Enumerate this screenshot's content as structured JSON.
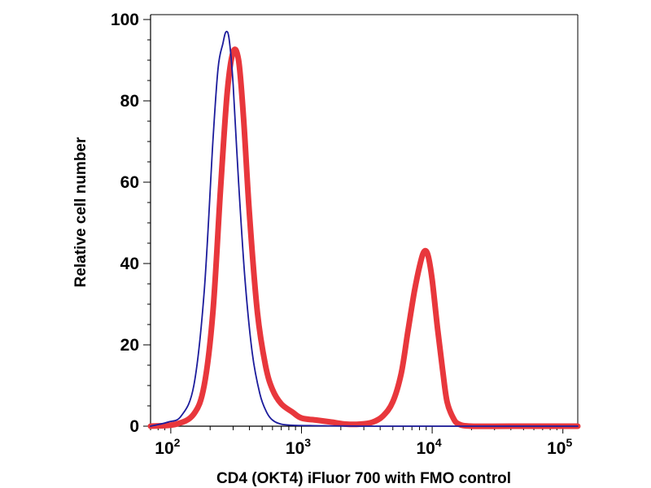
{
  "chart_data": {
    "type": "line",
    "title": "",
    "xlabel": "CD4 (OKT4) iFluor 700 with FMO control",
    "ylabel": "Relative cell number",
    "xscale": "log",
    "xlim": [
      70,
      130000
    ],
    "ylim": [
      0,
      100
    ],
    "x_ticks": [
      {
        "value": 100,
        "base": "10",
        "exp": "2"
      },
      {
        "value": 1000,
        "base": "10",
        "exp": "3"
      },
      {
        "value": 10000,
        "base": "10",
        "exp": "4"
      },
      {
        "value": 100000,
        "base": "10",
        "exp": "5"
      }
    ],
    "y_ticks": [
      0,
      20,
      40,
      60,
      80,
      100
    ],
    "series": [
      {
        "name": "FMO control",
        "color": "#1c1c9c",
        "x": [
          70,
          95,
          120,
          150,
          180,
          210,
          230,
          250,
          265,
          280,
          300,
          330,
          370,
          420,
          480,
          540,
          600,
          700,
          900,
          1500,
          3000,
          10000,
          130000
        ],
        "y": [
          0,
          1,
          2.5,
          10,
          33,
          70,
          88,
          94,
          97,
          95,
          84,
          60,
          36,
          18,
          8,
          3.5,
          1.5,
          0.5,
          0.2,
          0.1,
          0,
          0,
          0
        ]
      },
      {
        "name": "CD4 (OKT4) iFluor 700",
        "color": "#e8373c",
        "x": [
          70,
          110,
          150,
          180,
          210,
          240,
          270,
          300,
          330,
          360,
          400,
          460,
          530,
          600,
          700,
          850,
          1000,
          1300,
          1700,
          2200,
          2800,
          3500,
          4200,
          5000,
          5800,
          6500,
          7300,
          8100,
          8700,
          9300,
          10000,
          11000,
          12000,
          13000,
          14500,
          16000,
          20000,
          40000,
          130000
        ],
        "y": [
          0,
          0.5,
          3,
          10,
          28,
          58,
          82,
          92,
          90,
          76,
          52,
          28,
          15,
          9,
          5.5,
          3.5,
          2,
          1.5,
          1,
          0.5,
          0.5,
          1,
          2.5,
          6,
          13,
          23,
          33,
          40,
          43,
          42,
          36,
          24,
          14,
          6,
          2,
          0.5,
          0,
          0,
          0
        ]
      }
    ]
  }
}
